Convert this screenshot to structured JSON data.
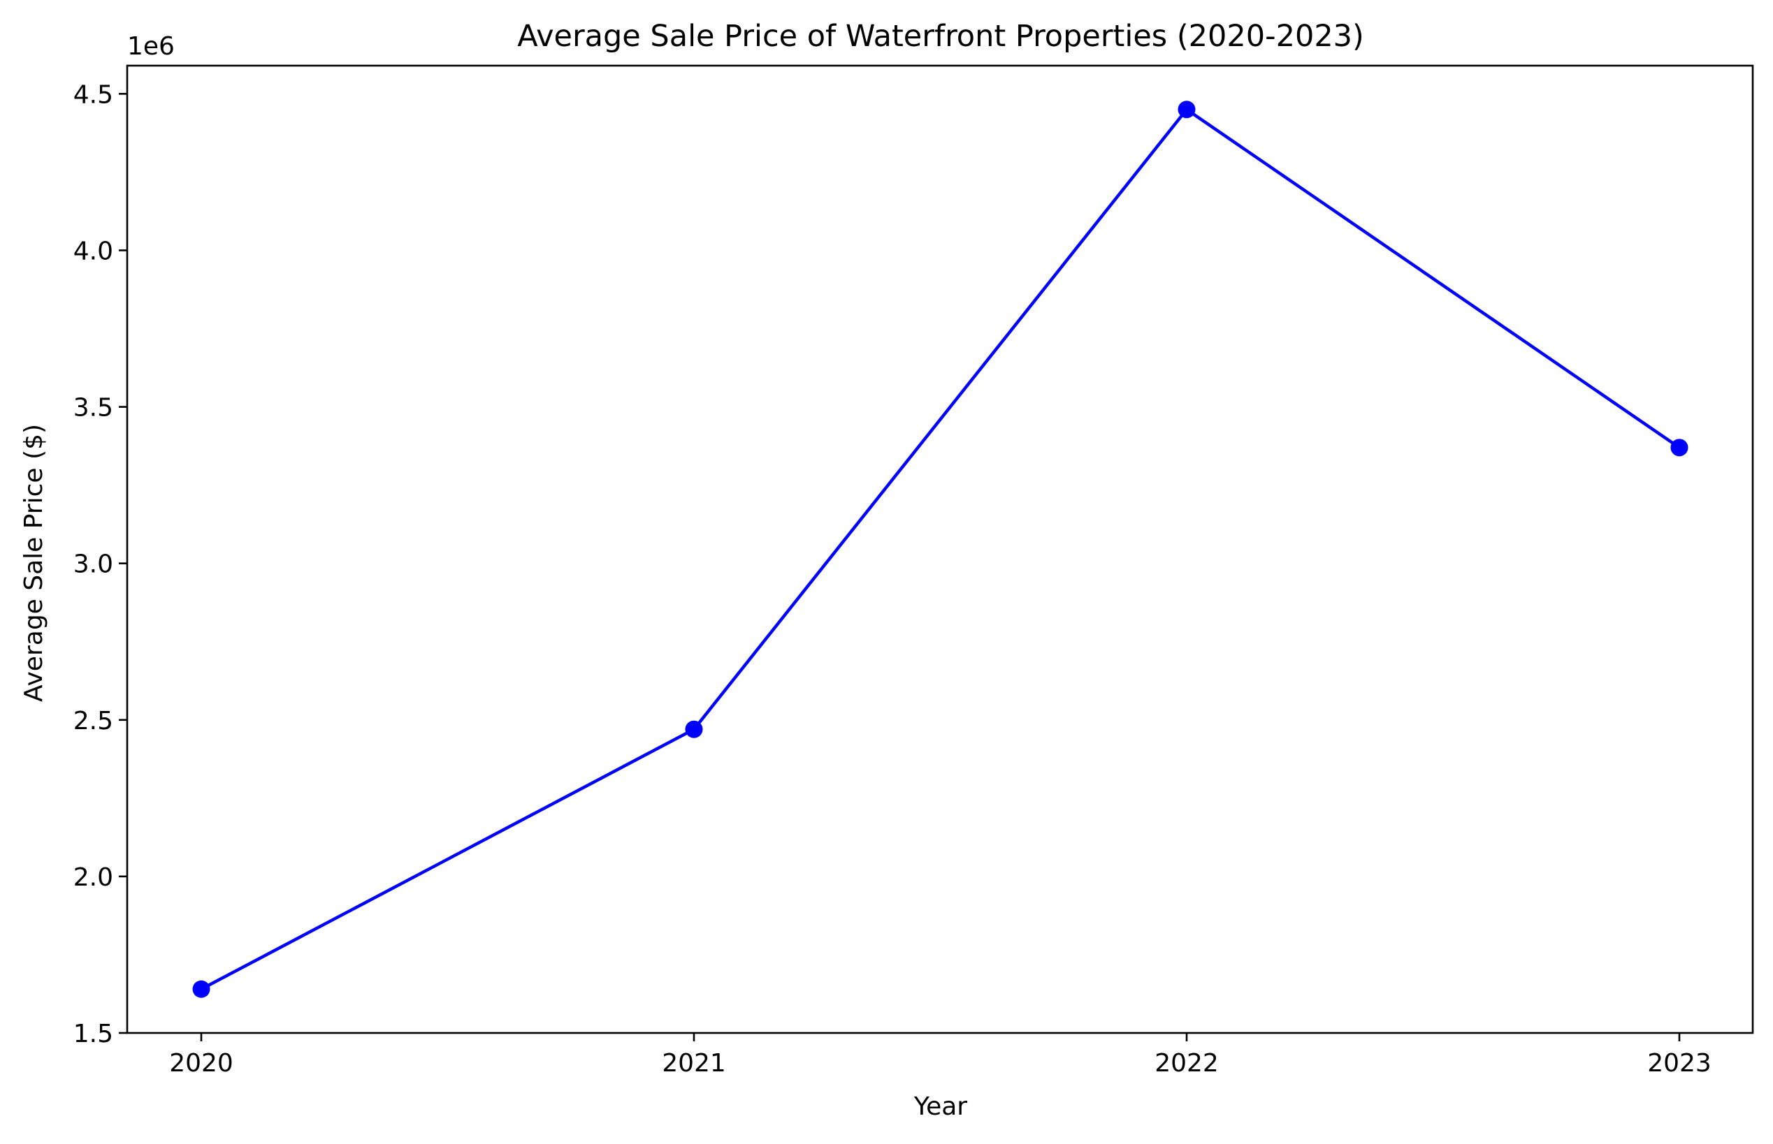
{
  "chart_data": {
    "type": "line",
    "title": "Average Sale Price of Waterfront Properties (2020-2023)",
    "xlabel": "Year",
    "ylabel": "Average Sale Price ($)",
    "y_offset_label": "1e6",
    "x": [
      "2020",
      "2021",
      "2022",
      "2023"
    ],
    "series": [
      {
        "values": [
          1640000,
          2470000,
          4450000,
          3370000
        ],
        "color": "#0000ff",
        "marker": "circle"
      }
    ],
    "yticks": [
      1.5,
      2.0,
      2.5,
      3.0,
      3.5,
      4.0,
      4.5
    ],
    "ytick_labels": [
      "1.5",
      "2.0",
      "2.5",
      "3.0",
      "3.5",
      "4.0",
      "4.5"
    ],
    "y_tick_multiplier": 1000000,
    "ylim": [
      1500000,
      4590000
    ],
    "grid": false,
    "legend": "none"
  }
}
